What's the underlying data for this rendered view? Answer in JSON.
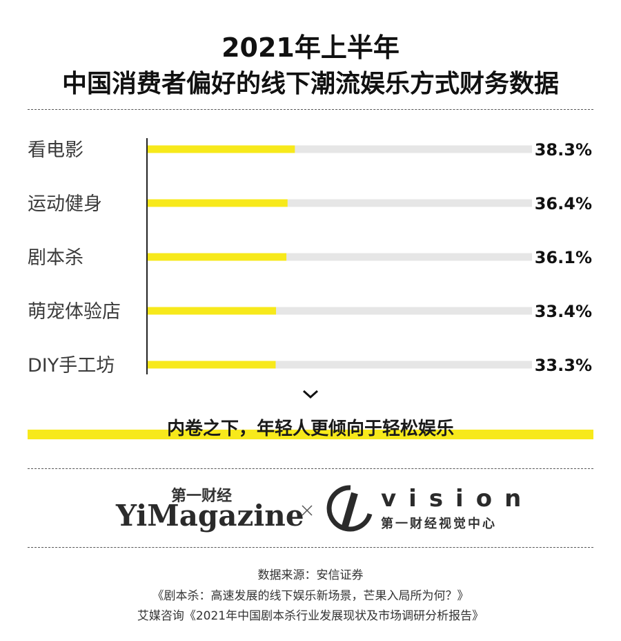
{
  "header": {
    "title_line1": "2021年上半年",
    "title_line2": "中国消费者偏好的线下潮流娱乐方式财务数据"
  },
  "chart_data": {
    "type": "bar",
    "orientation": "horizontal",
    "categories": [
      "看电影",
      "运动健身",
      "剧本杀",
      "萌宠体验店",
      "DIY手工坊"
    ],
    "values": [
      38.3,
      36.4,
      36.1,
      33.4,
      33.3
    ],
    "value_labels": [
      "38.3%",
      "36.4%",
      "36.1%",
      "33.4%",
      "33.3%"
    ],
    "unit": "%",
    "xlim": [
      0,
      100
    ],
    "colors": {
      "bar": "#f7e91b",
      "track": "#e6e6e6",
      "axis": "#222222"
    },
    "grid": false,
    "legend": "none"
  },
  "subtitle": "内卷之下，年轻人更倾向于轻松娱乐",
  "icons": {
    "chevron": "chevron-down-icon",
    "cross": "cross-icon",
    "vision": "vision-logo-icon"
  },
  "logos": {
    "yimagazine_cn": "第一财经",
    "yimagazine_en": "YiMagazine",
    "vision_en": "vision",
    "vision_cn": "第一财经视觉中心"
  },
  "source": {
    "line1": "数据来源：安信证券",
    "line2": "《剧本杀：高速发展的线下娱乐新场景，芒果入局所为何？》",
    "line3": "艾媒咨询《2021年中国剧本杀行业发展现状及市场调研分析报告》"
  }
}
